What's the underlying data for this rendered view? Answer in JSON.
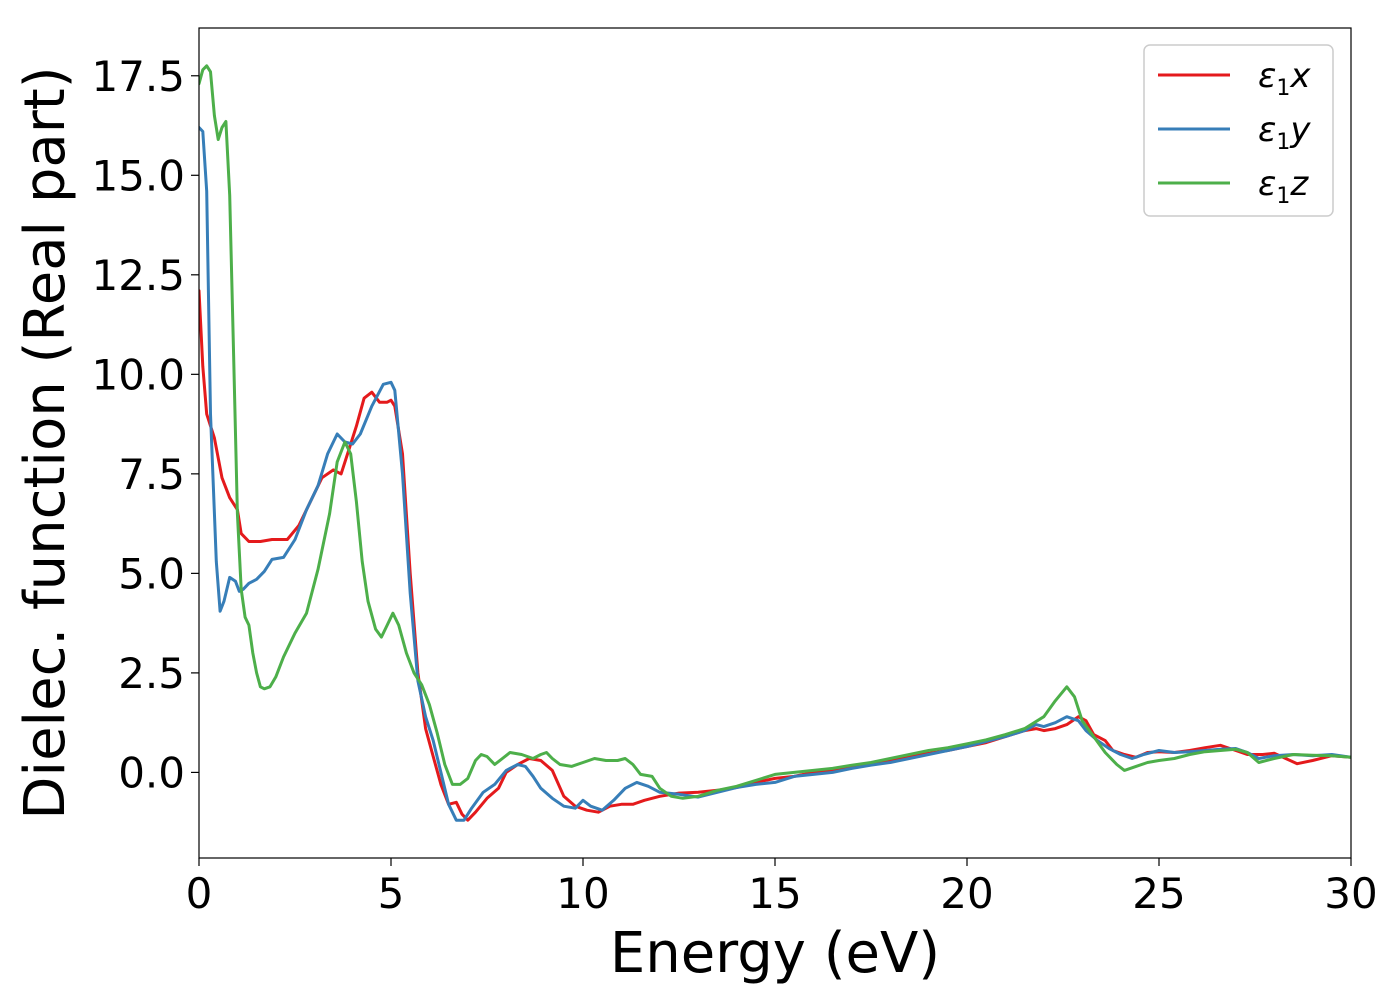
{
  "chart_data": {
    "type": "line",
    "xlabel": "Energy (eV)",
    "ylabel": "Dielec. function (Real part)",
    "xlim": [
      0,
      30
    ],
    "ylim": [
      -2.15,
      18.7
    ],
    "xticks": [
      0,
      5,
      10,
      15,
      20,
      25,
      30
    ],
    "xtick_labels": [
      "0",
      "5",
      "10",
      "15",
      "20",
      "25",
      "30"
    ],
    "yticks": [
      0,
      2.5,
      5,
      7.5,
      10,
      12.5,
      15,
      17.5
    ],
    "ytick_labels": [
      "0.0",
      "2.5",
      "5.0",
      "7.5",
      "10.0",
      "12.5",
      "15.0",
      "17.5"
    ],
    "grid": false,
    "legend_position": "top-right",
    "series": [
      {
        "name": "ε1x",
        "legend_symbol": "ε",
        "legend_sub": "1",
        "legend_var": "x",
        "color": "#e41a1c",
        "points": [
          [
            0,
            12.1
          ],
          [
            0.1,
            10.2
          ],
          [
            0.2,
            9.0
          ],
          [
            0.4,
            8.4
          ],
          [
            0.6,
            7.4
          ],
          [
            0.8,
            6.9
          ],
          [
            1.0,
            6.6
          ],
          [
            1.1,
            6.0
          ],
          [
            1.3,
            5.8
          ],
          [
            1.6,
            5.8
          ],
          [
            1.9,
            5.85
          ],
          [
            2.1,
            5.85
          ],
          [
            2.3,
            5.85
          ],
          [
            2.6,
            6.2
          ],
          [
            2.9,
            6.8
          ],
          [
            3.2,
            7.4
          ],
          [
            3.5,
            7.6
          ],
          [
            3.7,
            7.5
          ],
          [
            3.9,
            8.1
          ],
          [
            4.1,
            8.7
          ],
          [
            4.3,
            9.4
          ],
          [
            4.5,
            9.55
          ],
          [
            4.7,
            9.3
          ],
          [
            4.9,
            9.3
          ],
          [
            5.0,
            9.35
          ],
          [
            5.1,
            9.2
          ],
          [
            5.3,
            8.0
          ],
          [
            5.5,
            5.0
          ],
          [
            5.7,
            2.5
          ],
          [
            5.9,
            1.1
          ],
          [
            6.1,
            0.4
          ],
          [
            6.3,
            -0.3
          ],
          [
            6.5,
            -0.8
          ],
          [
            6.7,
            -0.75
          ],
          [
            6.85,
            -1.05
          ],
          [
            7.0,
            -1.2
          ],
          [
            7.2,
            -1.0
          ],
          [
            7.5,
            -0.65
          ],
          [
            7.8,
            -0.4
          ],
          [
            8.0,
            0.0
          ],
          [
            8.3,
            0.2
          ],
          [
            8.6,
            0.35
          ],
          [
            8.9,
            0.3
          ],
          [
            9.2,
            0.05
          ],
          [
            9.5,
            -0.6
          ],
          [
            9.8,
            -0.85
          ],
          [
            10.1,
            -0.95
          ],
          [
            10.4,
            -1.0
          ],
          [
            10.7,
            -0.85
          ],
          [
            11.0,
            -0.8
          ],
          [
            11.3,
            -0.8
          ],
          [
            11.6,
            -0.7
          ],
          [
            12.0,
            -0.6
          ],
          [
            12.5,
            -0.52
          ],
          [
            13.0,
            -0.5
          ],
          [
            13.5,
            -0.45
          ],
          [
            14.0,
            -0.38
          ],
          [
            14.5,
            -0.25
          ],
          [
            15.0,
            -0.15
          ],
          [
            15.5,
            -0.1
          ],
          [
            16.0,
            0.0
          ],
          [
            16.5,
            0.05
          ],
          [
            17.0,
            0.12
          ],
          [
            17.5,
            0.2
          ],
          [
            18.0,
            0.3
          ],
          [
            18.5,
            0.4
          ],
          [
            19.0,
            0.48
          ],
          [
            19.5,
            0.55
          ],
          [
            20.0,
            0.65
          ],
          [
            20.5,
            0.75
          ],
          [
            21.0,
            0.9
          ],
          [
            21.5,
            1.05
          ],
          [
            21.8,
            1.1
          ],
          [
            22.0,
            1.05
          ],
          [
            22.3,
            1.1
          ],
          [
            22.6,
            1.2
          ],
          [
            22.9,
            1.4
          ],
          [
            23.1,
            1.3
          ],
          [
            23.3,
            0.95
          ],
          [
            23.6,
            0.8
          ],
          [
            23.8,
            0.55
          ],
          [
            24.1,
            0.45
          ],
          [
            24.4,
            0.38
          ],
          [
            24.7,
            0.5
          ],
          [
            25.0,
            0.52
          ],
          [
            25.4,
            0.5
          ],
          [
            25.8,
            0.55
          ],
          [
            26.2,
            0.62
          ],
          [
            26.6,
            0.68
          ],
          [
            27.0,
            0.55
          ],
          [
            27.3,
            0.45
          ],
          [
            27.7,
            0.45
          ],
          [
            28.0,
            0.48
          ],
          [
            28.3,
            0.35
          ],
          [
            28.6,
            0.22
          ],
          [
            29.0,
            0.3
          ],
          [
            29.5,
            0.42
          ],
          [
            30.0,
            0.38
          ]
        ]
      },
      {
        "name": "ε1y",
        "legend_symbol": "ε",
        "legend_sub": "1",
        "legend_var": "y",
        "color": "#377eb8",
        "points": [
          [
            0,
            16.2
          ],
          [
            0.1,
            16.1
          ],
          [
            0.2,
            14.6
          ],
          [
            0.3,
            9.0
          ],
          [
            0.45,
            5.3
          ],
          [
            0.55,
            4.05
          ],
          [
            0.65,
            4.3
          ],
          [
            0.8,
            4.9
          ],
          [
            0.95,
            4.8
          ],
          [
            1.05,
            4.55
          ],
          [
            1.15,
            4.6
          ],
          [
            1.3,
            4.75
          ],
          [
            1.5,
            4.85
          ],
          [
            1.7,
            5.05
          ],
          [
            1.9,
            5.35
          ],
          [
            2.2,
            5.4
          ],
          [
            2.5,
            5.85
          ],
          [
            2.8,
            6.6
          ],
          [
            3.1,
            7.2
          ],
          [
            3.35,
            8.0
          ],
          [
            3.6,
            8.5
          ],
          [
            3.8,
            8.3
          ],
          [
            4.0,
            8.25
          ],
          [
            4.2,
            8.5
          ],
          [
            4.5,
            9.2
          ],
          [
            4.8,
            9.75
          ],
          [
            5.0,
            9.8
          ],
          [
            5.1,
            9.6
          ],
          [
            5.3,
            7.5
          ],
          [
            5.5,
            4.5
          ],
          [
            5.7,
            2.3
          ],
          [
            5.9,
            1.4
          ],
          [
            6.1,
            0.8
          ],
          [
            6.3,
            0.0
          ],
          [
            6.5,
            -0.8
          ],
          [
            6.7,
            -1.2
          ],
          [
            6.9,
            -1.2
          ],
          [
            7.1,
            -0.9
          ],
          [
            7.4,
            -0.5
          ],
          [
            7.7,
            -0.3
          ],
          [
            8.0,
            0.05
          ],
          [
            8.3,
            0.2
          ],
          [
            8.5,
            0.15
          ],
          [
            8.7,
            -0.1
          ],
          [
            8.9,
            -0.4
          ],
          [
            9.2,
            -0.65
          ],
          [
            9.5,
            -0.85
          ],
          [
            9.8,
            -0.9
          ],
          [
            10.0,
            -0.7
          ],
          [
            10.2,
            -0.85
          ],
          [
            10.5,
            -0.95
          ],
          [
            10.8,
            -0.7
          ],
          [
            11.1,
            -0.4
          ],
          [
            11.4,
            -0.25
          ],
          [
            11.7,
            -0.35
          ],
          [
            12.0,
            -0.5
          ],
          [
            12.5,
            -0.55
          ],
          [
            13.0,
            -0.62
          ],
          [
            13.5,
            -0.5
          ],
          [
            14.0,
            -0.38
          ],
          [
            14.5,
            -0.3
          ],
          [
            15.0,
            -0.25
          ],
          [
            15.5,
            -0.1
          ],
          [
            16.0,
            -0.05
          ],
          [
            16.5,
            0.0
          ],
          [
            17.0,
            0.1
          ],
          [
            17.5,
            0.18
          ],
          [
            18.0,
            0.25
          ],
          [
            18.5,
            0.35
          ],
          [
            19.0,
            0.45
          ],
          [
            19.5,
            0.55
          ],
          [
            20.0,
            0.65
          ],
          [
            20.5,
            0.78
          ],
          [
            21.0,
            0.9
          ],
          [
            21.5,
            1.05
          ],
          [
            21.8,
            1.2
          ],
          [
            22.0,
            1.15
          ],
          [
            22.3,
            1.25
          ],
          [
            22.6,
            1.4
          ],
          [
            22.9,
            1.3
          ],
          [
            23.1,
            1.05
          ],
          [
            23.4,
            0.8
          ],
          [
            23.7,
            0.6
          ],
          [
            24.0,
            0.45
          ],
          [
            24.3,
            0.35
          ],
          [
            24.6,
            0.45
          ],
          [
            25.0,
            0.55
          ],
          [
            25.4,
            0.5
          ],
          [
            25.8,
            0.52
          ],
          [
            26.2,
            0.55
          ],
          [
            26.6,
            0.58
          ],
          [
            27.0,
            0.6
          ],
          [
            27.3,
            0.5
          ],
          [
            27.6,
            0.35
          ],
          [
            28.0,
            0.42
          ],
          [
            28.5,
            0.45
          ],
          [
            29.0,
            0.42
          ],
          [
            29.5,
            0.45
          ],
          [
            30.0,
            0.38
          ]
        ]
      },
      {
        "name": "ε1z",
        "legend_symbol": "ε",
        "legend_sub": "1",
        "legend_var": "z",
        "color": "#4daf4a",
        "points": [
          [
            0,
            17.3
          ],
          [
            0.1,
            17.65
          ],
          [
            0.2,
            17.75
          ],
          [
            0.3,
            17.6
          ],
          [
            0.4,
            16.5
          ],
          [
            0.5,
            15.9
          ],
          [
            0.6,
            16.2
          ],
          [
            0.7,
            16.35
          ],
          [
            0.8,
            14.5
          ],
          [
            0.9,
            10.5
          ],
          [
            1.0,
            6.5
          ],
          [
            1.1,
            4.6
          ],
          [
            1.2,
            3.9
          ],
          [
            1.3,
            3.7
          ],
          [
            1.4,
            3.0
          ],
          [
            1.5,
            2.5
          ],
          [
            1.6,
            2.15
          ],
          [
            1.7,
            2.1
          ],
          [
            1.85,
            2.15
          ],
          [
            2.0,
            2.4
          ],
          [
            2.2,
            2.9
          ],
          [
            2.5,
            3.5
          ],
          [
            2.8,
            4.0
          ],
          [
            3.1,
            5.1
          ],
          [
            3.4,
            6.5
          ],
          [
            3.6,
            7.8
          ],
          [
            3.8,
            8.3
          ],
          [
            3.95,
            8.0
          ],
          [
            4.1,
            6.8
          ],
          [
            4.25,
            5.3
          ],
          [
            4.4,
            4.3
          ],
          [
            4.6,
            3.6
          ],
          [
            4.75,
            3.4
          ],
          [
            4.9,
            3.7
          ],
          [
            5.05,
            4.0
          ],
          [
            5.2,
            3.7
          ],
          [
            5.4,
            3.0
          ],
          [
            5.6,
            2.5
          ],
          [
            5.8,
            2.2
          ],
          [
            6.0,
            1.7
          ],
          [
            6.2,
            1.0
          ],
          [
            6.4,
            0.2
          ],
          [
            6.6,
            -0.3
          ],
          [
            6.8,
            -0.3
          ],
          [
            7.0,
            -0.15
          ],
          [
            7.2,
            0.3
          ],
          [
            7.35,
            0.45
          ],
          [
            7.5,
            0.4
          ],
          [
            7.7,
            0.2
          ],
          [
            7.9,
            0.35
          ],
          [
            8.1,
            0.5
          ],
          [
            8.4,
            0.45
          ],
          [
            8.7,
            0.35
          ],
          [
            8.9,
            0.45
          ],
          [
            9.05,
            0.5
          ],
          [
            9.2,
            0.35
          ],
          [
            9.4,
            0.2
          ],
          [
            9.7,
            0.15
          ],
          [
            10.0,
            0.25
          ],
          [
            10.3,
            0.35
          ],
          [
            10.6,
            0.3
          ],
          [
            10.9,
            0.3
          ],
          [
            11.1,
            0.35
          ],
          [
            11.3,
            0.2
          ],
          [
            11.5,
            -0.05
          ],
          [
            11.8,
            -0.1
          ],
          [
            12.0,
            -0.4
          ],
          [
            12.3,
            -0.6
          ],
          [
            12.6,
            -0.65
          ],
          [
            13.0,
            -0.6
          ],
          [
            13.5,
            -0.45
          ],
          [
            14.0,
            -0.35
          ],
          [
            14.5,
            -0.2
          ],
          [
            15.0,
            -0.05
          ],
          [
            15.5,
            0.0
          ],
          [
            16.0,
            0.05
          ],
          [
            16.5,
            0.1
          ],
          [
            17.0,
            0.18
          ],
          [
            17.5,
            0.25
          ],
          [
            18.0,
            0.35
          ],
          [
            18.5,
            0.45
          ],
          [
            19.0,
            0.55
          ],
          [
            19.5,
            0.62
          ],
          [
            20.0,
            0.72
          ],
          [
            20.5,
            0.82
          ],
          [
            21.0,
            0.95
          ],
          [
            21.5,
            1.1
          ],
          [
            22.0,
            1.4
          ],
          [
            22.3,
            1.8
          ],
          [
            22.6,
            2.15
          ],
          [
            22.8,
            1.9
          ],
          [
            23.0,
            1.3
          ],
          [
            23.3,
            0.9
          ],
          [
            23.6,
            0.5
          ],
          [
            23.9,
            0.2
          ],
          [
            24.1,
            0.05
          ],
          [
            24.4,
            0.15
          ],
          [
            24.7,
            0.25
          ],
          [
            25.0,
            0.3
          ],
          [
            25.4,
            0.35
          ],
          [
            25.8,
            0.45
          ],
          [
            26.2,
            0.52
          ],
          [
            26.6,
            0.55
          ],
          [
            27.0,
            0.58
          ],
          [
            27.3,
            0.5
          ],
          [
            27.6,
            0.25
          ],
          [
            28.0,
            0.35
          ],
          [
            28.5,
            0.45
          ],
          [
            29.0,
            0.43
          ],
          [
            29.5,
            0.42
          ],
          [
            30.0,
            0.38
          ]
        ]
      }
    ]
  }
}
